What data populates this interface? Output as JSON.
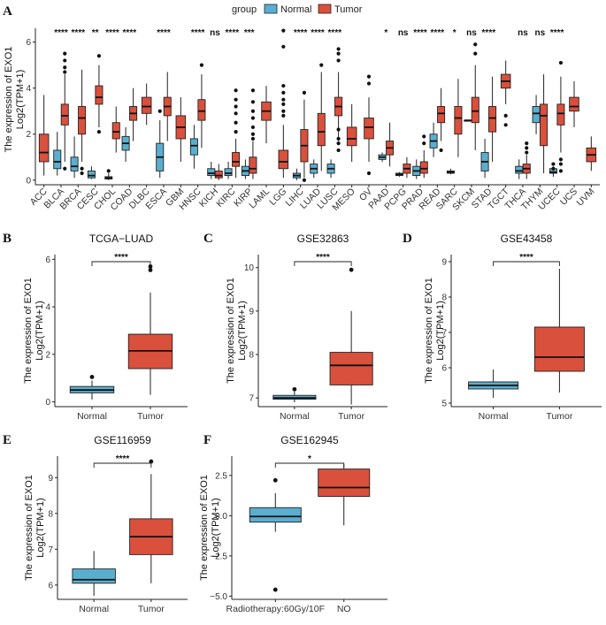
{
  "colors": {
    "normal": "#5aafd0",
    "tumor": "#d9503c",
    "axis": "#222222"
  },
  "legend": {
    "title": "group",
    "items": [
      "Normal",
      "Tumor"
    ]
  },
  "chart_data": [
    {
      "panel": "A",
      "type": "boxplot",
      "title": "",
      "ylabel_line1": "The expression of EXO1",
      "ylabel_line2": "Log2(TPM+1)",
      "ylim": [
        -0.2,
        6.6
      ],
      "yticks": [
        0,
        2,
        4,
        6
      ],
      "categories": [
        "ACC",
        "BLCA",
        "BRCA",
        "CESC",
        "CHOL",
        "COAD",
        "DLBC",
        "ESCA",
        "GBM",
        "HNSC",
        "KICH",
        "KIRC",
        "KIRP",
        "LAML",
        "LGG",
        "LIHC",
        "LUAD",
        "LUSC",
        "MESO",
        "OV",
        "PAAD",
        "PCPG",
        "PRAD",
        "READ",
        "SARC",
        "SKCM",
        "STAD",
        "TGCT",
        "THCA",
        "THYM",
        "UCEC",
        "UCS",
        "UVM"
      ],
      "significance": [
        "",
        "****",
        "****",
        "**",
        "****",
        "****",
        "",
        "****",
        "",
        "****",
        "ns",
        "****",
        "***",
        "",
        "",
        "****",
        "****",
        "****",
        "",
        "",
        "*",
        "ns",
        "****",
        "****",
        "*",
        "ns",
        "****",
        "",
        "ns",
        "ns",
        "****",
        "",
        ""
      ],
      "series": [
        {
          "name": "Normal",
          "boxes": [
            null,
            [
              0.5,
              0.8,
              1.3,
              0.2,
              2.1
            ],
            [
              0.4,
              0.6,
              1.0,
              0.1,
              1.9
            ],
            [
              0.1,
              0.2,
              0.4,
              0.05,
              0.6
            ],
            [
              0.05,
              0.1,
              0.15,
              0.0,
              0.3
            ],
            [
              1.3,
              1.6,
              1.9,
              0.8,
              2.3
            ],
            null,
            [
              0.4,
              1.0,
              1.6,
              0.1,
              2.6
            ],
            null,
            [
              1.1,
              1.5,
              1.8,
              0.5,
              2.4
            ],
            [
              0.2,
              0.3,
              0.5,
              0.05,
              0.8
            ],
            [
              0.2,
              0.3,
              0.5,
              0.05,
              0.8
            ],
            [
              0.2,
              0.4,
              0.6,
              0.05,
              0.9
            ],
            null,
            null,
            [
              0.1,
              0.2,
              0.3,
              0.0,
              0.5
            ],
            [
              0.3,
              0.5,
              0.7,
              0.1,
              0.9
            ],
            [
              0.3,
              0.5,
              0.7,
              0.1,
              0.9
            ],
            null,
            null,
            [
              0.9,
              1.0,
              1.1,
              0.8,
              1.2
            ],
            [
              0.2,
              0.25,
              0.3,
              0.15,
              0.35
            ],
            [
              0.2,
              0.4,
              0.6,
              0.05,
              0.9
            ],
            [
              1.4,
              1.7,
              2.0,
              1.0,
              2.5
            ],
            [
              0.3,
              0.35,
              0.4,
              0.25,
              0.5
            ],
            [
              2.6,
              2.6,
              2.6,
              2.6,
              2.6
            ],
            [
              0.4,
              0.8,
              1.2,
              0.1,
              1.8
            ],
            null,
            [
              0.3,
              0.4,
              0.6,
              0.05,
              0.9
            ],
            [
              2.5,
              2.9,
              3.2,
              2.0,
              3.7
            ],
            [
              0.3,
              0.35,
              0.5,
              0.15,
              0.6
            ],
            null,
            null
          ]
        },
        {
          "name": "Tumor",
          "boxes": [
            [
              0.8,
              1.2,
              2.0,
              0.2,
              3.7
            ],
            [
              2.4,
              2.8,
              3.3,
              0.8,
              4.6
            ],
            [
              2.0,
              2.7,
              3.2,
              0.8,
              4.8
            ],
            [
              3.3,
              3.6,
              4.1,
              2.3,
              5.0
            ],
            [
              1.8,
              2.1,
              2.5,
              1.2,
              3.2
            ],
            [
              2.6,
              2.9,
              3.2,
              1.7,
              4.0
            ],
            [
              2.9,
              3.2,
              3.6,
              2.4,
              4.2
            ],
            [
              2.8,
              3.2,
              3.6,
              1.7,
              4.7
            ],
            [
              1.8,
              2.3,
              2.8,
              0.8,
              3.6
            ],
            [
              2.6,
              3.0,
              3.5,
              1.4,
              4.6
            ],
            [
              0.1,
              0.2,
              0.4,
              0.0,
              0.7
            ],
            [
              0.6,
              0.8,
              1.2,
              0.1,
              1.8
            ],
            [
              0.3,
              0.5,
              1.0,
              0.05,
              1.7
            ],
            [
              2.6,
              3.0,
              3.4,
              1.6,
              4.1
            ],
            [
              0.5,
              0.8,
              1.3,
              0.1,
              2.4
            ],
            [
              0.8,
              1.5,
              2.2,
              0.1,
              3.5
            ],
            [
              1.5,
              2.1,
              2.9,
              0.4,
              4.7
            ],
            [
              2.8,
              3.2,
              3.6,
              1.7,
              4.7
            ],
            [
              1.5,
              1.8,
              2.3,
              0.8,
              3.3
            ],
            [
              1.8,
              2.3,
              2.7,
              0.8,
              3.6
            ],
            [
              1.1,
              1.4,
              1.7,
              0.6,
              2.5
            ],
            [
              0.3,
              0.5,
              0.7,
              0.1,
              1.0
            ],
            [
              0.3,
              0.5,
              0.8,
              0.1,
              1.3
            ],
            [
              2.5,
              2.9,
              3.2,
              1.7,
              4.0
            ],
            [
              2.0,
              2.7,
              3.2,
              1.0,
              4.4
            ],
            [
              2.5,
              3.0,
              3.6,
              1.3,
              5.0
            ],
            [
              2.1,
              2.7,
              3.2,
              0.8,
              4.5
            ],
            [
              4.0,
              4.3,
              4.6,
              3.3,
              5.2
            ],
            [
              0.3,
              0.5,
              0.7,
              0.05,
              1.1
            ],
            [
              1.5,
              2.8,
              3.3,
              0.3,
              4.6
            ],
            [
              2.4,
              2.9,
              3.3,
              1.2,
              4.5
            ],
            [
              3.0,
              3.2,
              3.6,
              2.3,
              4.3
            ],
            [
              0.8,
              1.1,
              1.4,
              0.4,
              1.9
            ]
          ]
        }
      ],
      "outliers": {
        "BLCA_T": [
          5.5,
          5.2,
          4.9,
          4.7,
          0.5
        ],
        "BRCA_T": [
          0.5,
          0.3
        ],
        "CESC_T": [
          5.4,
          2.1
        ],
        "CHOL_N": [
          0.4
        ],
        "ESCA_N": [
          3.0
        ],
        "HNSC_T": [
          5.0
        ],
        "KIRC_T": [
          3.9,
          3.5,
          3.2,
          2.9,
          2.5,
          2.1
        ],
        "KIRP_T": [
          3.9,
          3.4,
          3.0,
          2.7,
          2.3,
          2.0,
          1.8
        ],
        "LGG_T": [
          6.5,
          5.8,
          4.1,
          3.8,
          3.5,
          3.3,
          3.0,
          2.8
        ],
        "LIHC_T": [
          3.8,
          0.0
        ],
        "LUAD_T": [
          5.0
        ],
        "LUSC_T": [
          5.7,
          5.5,
          5.2,
          2.2,
          1.8,
          1.6,
          1.3
        ],
        "OV_T": [
          4.5,
          4.2,
          0.3
        ],
        "PRAD_T": [
          1.9,
          1.6
        ],
        "READ_T": [
          1.3
        ],
        "SKCM_T": [
          5.9,
          5.5
        ],
        "TGCT_T": [
          2.8,
          2.4
        ],
        "THCA_T": [
          1.6,
          1.4,
          1.2
        ],
        "UCEC_N": [
          0.7,
          0.5
        ],
        "UCEC_T": [
          5.1,
          0.9,
          0.7,
          0.4
        ]
      }
    },
    {
      "panel": "B",
      "type": "boxplot",
      "title": "TCGA−LUAD",
      "ylabel_line1": "The expression of EXO1",
      "ylabel_line2": "Log2(TPM+1)",
      "ylim": [
        -0.2,
        6.2
      ],
      "yticks": [
        0,
        2,
        4,
        6
      ],
      "categories": [
        "Normal",
        "Tumor"
      ],
      "significance": "****",
      "boxes": [
        [
          0.38,
          0.5,
          0.65,
          0.1,
          0.9
        ],
        [
          1.4,
          2.15,
          2.85,
          0.3,
          4.6
        ]
      ],
      "outliers": [
        [
          1.05
        ],
        [
          5.7,
          5.55
        ]
      ]
    },
    {
      "panel": "C",
      "type": "boxplot",
      "title": "GSE32863",
      "ylabel_line1": "The expression of EXO1",
      "ylabel_line2": "Log2(TPM+1)",
      "ylim": [
        6.8,
        10.3
      ],
      "yticks": [
        7,
        8,
        9,
        10
      ],
      "categories": [
        "Normal",
        "Tumor"
      ],
      "significance": "****",
      "boxes": [
        [
          6.97,
          7.0,
          7.06,
          6.9,
          7.15
        ],
        [
          7.3,
          7.75,
          8.05,
          6.85,
          9.0
        ]
      ],
      "outliers": [
        [
          7.2
        ],
        [
          9.95
        ]
      ]
    },
    {
      "panel": "D",
      "type": "boxplot",
      "title": "GSE43458",
      "ylabel_line1": "The expression of EXO1",
      "ylabel_line2": "Log2(TPM+1)",
      "ylim": [
        4.9,
        9.2
      ],
      "yticks": [
        5,
        6,
        7,
        8,
        9
      ],
      "categories": [
        "Normal",
        "Tumor"
      ],
      "significance": "****",
      "boxes": [
        [
          5.4,
          5.5,
          5.6,
          5.15,
          5.95
        ],
        [
          5.9,
          6.3,
          7.15,
          5.3,
          8.8
        ]
      ],
      "outliers": [
        [],
        []
      ]
    },
    {
      "panel": "E",
      "type": "boxplot",
      "title": "GSE116959",
      "ylabel_line1": "The expression of EXO1",
      "ylabel_line2": "Log2(TPM+1)",
      "ylim": [
        5.6,
        9.6
      ],
      "yticks": [
        6,
        7,
        8,
        9
      ],
      "categories": [
        "Normal",
        "Tumor"
      ],
      "significance": "****",
      "boxes": [
        [
          6.05,
          6.15,
          6.45,
          5.7,
          6.95
        ],
        [
          6.85,
          7.35,
          7.85,
          6.05,
          9.1
        ]
      ],
      "outliers": [
        [],
        [
          9.45
        ]
      ]
    },
    {
      "panel": "F",
      "type": "boxplot",
      "title": "GSE162945",
      "ylabel_line1": "The expression of EXO1",
      "ylabel_line2": "Log2(TPM+1)",
      "ylim": [
        -5.2,
        3.7
      ],
      "yticks": [
        -5.0,
        -2.5,
        0.0,
        2.5
      ],
      "ytick_labels": [
        "−5.0",
        "−2.5",
        "0.0",
        "2.5"
      ],
      "categories": [
        "Radiotherapy:60Gy/10F",
        "NO"
      ],
      "significance": "*",
      "boxes": [
        [
          -0.4,
          -0.05,
          0.5,
          -1.0,
          1.4
        ],
        [
          1.2,
          1.75,
          2.9,
          -0.6,
          3.2
        ]
      ],
      "outliers": [
        [
          2.2,
          -4.6
        ],
        []
      ]
    }
  ]
}
